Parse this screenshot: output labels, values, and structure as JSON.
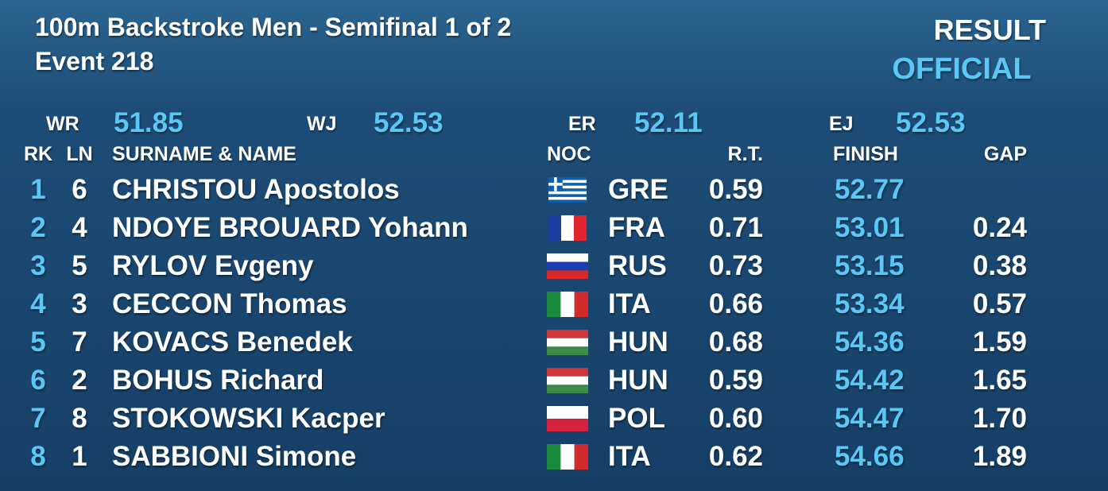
{
  "header": {
    "title": "100m Backstroke Men - Semifinal 1 of 2",
    "event": "Event 218",
    "result": "RESULT",
    "status": "OFFICIAL"
  },
  "records": [
    {
      "label": "WR",
      "value": "51.85"
    },
    {
      "label": "WJ",
      "value": "52.53"
    },
    {
      "label": "ER",
      "value": "52.11"
    },
    {
      "label": "EJ",
      "value": "52.53"
    }
  ],
  "table": {
    "columns": [
      "RK",
      "LN",
      "SURNAME & NAME",
      "NOC",
      "R.T.",
      "FINISH",
      "GAP"
    ],
    "rows": [
      [
        "1",
        "6",
        "CHRISTOU Apostolos",
        "GRE",
        "0.59",
        "52.77",
        null
      ],
      [
        "2",
        "4",
        "NDOYE BROUARD Yohann",
        "FRA",
        "0.71",
        "53.01",
        "0.24"
      ],
      [
        "3",
        "5",
        "RYLOV Evgeny",
        "RUS",
        "0.73",
        "53.15",
        "0.38"
      ],
      [
        "4",
        "3",
        "CECCON Thomas",
        "ITA",
        "0.66",
        "53.34",
        "0.57"
      ],
      [
        "5",
        "7",
        "KOVACS Benedek",
        "HUN",
        "0.68",
        "54.36",
        "1.59"
      ],
      [
        "6",
        "2",
        "BOHUS Richard",
        "HUN",
        "0.59",
        "54.42",
        "1.65"
      ],
      [
        "7",
        "8",
        "STOKOWSKI Kacper",
        "POL",
        "0.60",
        "54.47",
        "1.70"
      ],
      [
        "8",
        "1",
        "SABBIONI Simone",
        "ITA",
        "0.62",
        "54.66",
        "1.89"
      ]
    ]
  }
}
